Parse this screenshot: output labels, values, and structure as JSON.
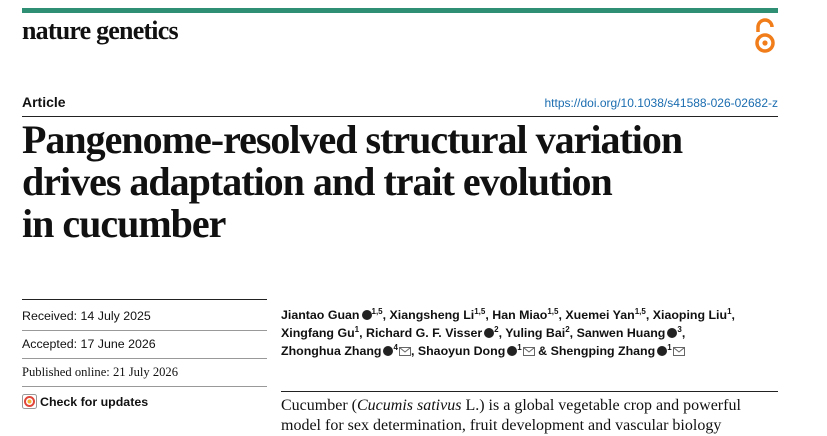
{
  "header": {
    "journal": "nature genetics",
    "article_type": "Article",
    "doi": "https://doi.org/10.1038/s41588-026-02682-z"
  },
  "title_lines": [
    "Pangenome-resolved structural variation",
    "drives adaptation and trait evolution",
    "in cucumber"
  ],
  "dates": {
    "received": "Received: 14 July 2025",
    "accepted": "Accepted: 17 June 2026",
    "published": "Published online: 21 July 2026"
  },
  "check_updates": "Check for updates",
  "authors": {
    "separator": ",",
    "conjunction": "&",
    "list": [
      {
        "name": "Jiantao Guan",
        "orcid": true,
        "affiliations": "1,5",
        "corresponding": false
      },
      {
        "name": "Xiangsheng Li",
        "orcid": false,
        "affiliations": "1,5",
        "corresponding": false
      },
      {
        "name": "Han Miao",
        "orcid": false,
        "affiliations": "1,5",
        "corresponding": false
      },
      {
        "name": "Xuemei Yan",
        "orcid": false,
        "affiliations": "1,5",
        "corresponding": false
      },
      {
        "name": "Xiaoping Liu",
        "orcid": false,
        "affiliations": "1",
        "corresponding": false
      },
      {
        "name": "Xingfang Gu",
        "orcid": false,
        "affiliations": "1",
        "corresponding": false
      },
      {
        "name": "Richard G. F. Visser",
        "orcid": true,
        "affiliations": "2",
        "corresponding": false
      },
      {
        "name": "Yuling Bai",
        "orcid": false,
        "affiliations": "2",
        "corresponding": false
      },
      {
        "name": "Sanwen Huang",
        "orcid": true,
        "affiliations": "3",
        "corresponding": false
      },
      {
        "name": "Zhonghua Zhang",
        "orcid": true,
        "affiliations": "4",
        "corresponding": true
      },
      {
        "name": "Shaoyun Dong",
        "orcid": true,
        "affiliations": "1",
        "corresponding": true
      },
      {
        "name": "Shengping Zhang",
        "orcid": true,
        "affiliations": "1",
        "corresponding": true
      }
    ]
  },
  "abstract": {
    "line1": [
      "Cucumber (",
      "Cucumis sativus",
      " L.) is a global vegetable crop and powerful"
    ],
    "line2": "model for sex determination, fruit development and vascular biology"
  }
}
